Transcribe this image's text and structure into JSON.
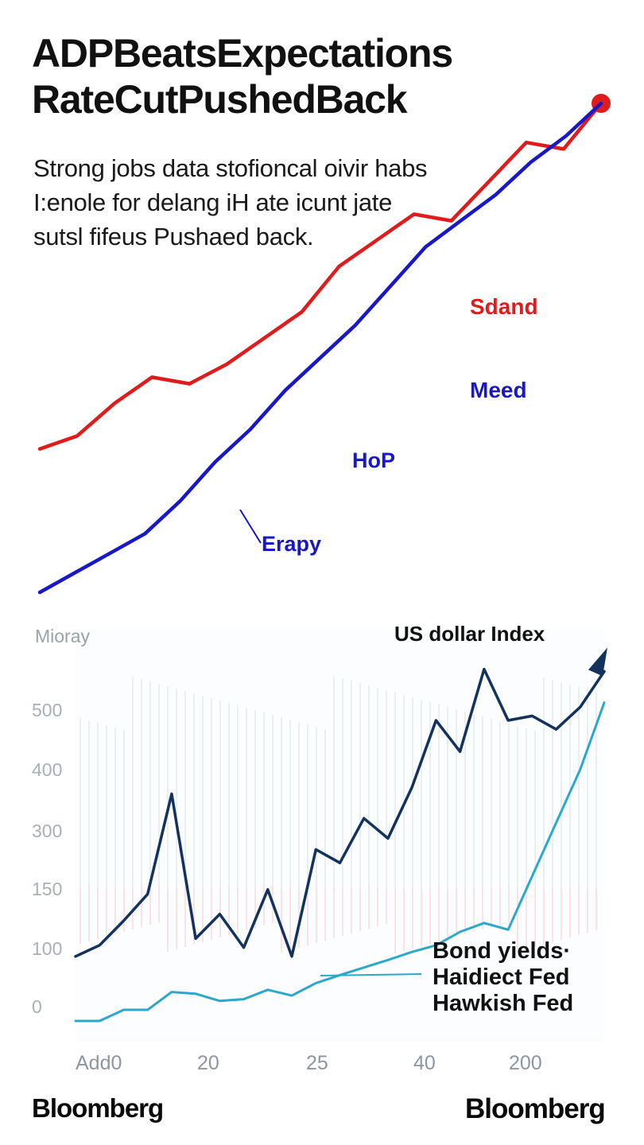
{
  "headline": {
    "line1": "ADPBeatsExpectations",
    "line2": "RateCutPushedBack"
  },
  "subhead": {
    "line1": "Strong jobs data stofioncal oivir habs",
    "line2": "I:enole for delang iH ate icunt jate",
    "line3": "sutsl fifeus Pushaed back."
  },
  "colors": {
    "red": "#e01b1b",
    "blue": "#1818c8",
    "navy": "#13325e",
    "cyan": "#2aa9cc",
    "grid": "#dfe6ee",
    "faint_red": "#f7d2d2"
  },
  "chart_data": [
    {
      "type": "line",
      "title": "",
      "series": [
        {
          "name": "Sdand",
          "color": "#e01b1b",
          "values": [
            2,
            4,
            9,
            13,
            12,
            15,
            19,
            23,
            30,
            34,
            38,
            37,
            43,
            49,
            48,
            55
          ],
          "end_marker": true
        },
        {
          "name": "Meed",
          "color": "#1818c8",
          "values": [
            -20,
            -17,
            -14,
            -11,
            -6,
            0,
            5,
            11,
            16,
            21,
            27,
            33,
            37,
            41,
            46,
            50,
            55
          ]
        }
      ],
      "annotations": [
        "HoP",
        "Erapy"
      ]
    },
    {
      "type": "line",
      "ylabel": "Mioray",
      "ytick_labels": [
        "500",
        "400",
        "300",
        "150",
        "100",
        "0"
      ],
      "xtick_labels": [
        "Add0",
        "20",
        "25",
        "40",
        "200"
      ],
      "series": [
        {
          "name": "US dollar Index",
          "color": "#13325e",
          "values": [
            120,
            145,
            200,
            260,
            485,
            160,
            215,
            140,
            270,
            120,
            360,
            330,
            430,
            385,
            500,
            650,
            580,
            765,
            650,
            660,
            630,
            680,
            760
          ]
        },
        {
          "name": "Bond yields· Haidiect Fed Hawkish Fed",
          "label_lines": [
            "Bond yields·",
            "Haidiect Fed",
            "Hawkish Fed"
          ],
          "color": "#2aa9cc",
          "values": [
            -25,
            -25,
            0,
            0,
            40,
            36,
            20,
            24,
            45,
            32,
            60,
            78,
            95,
            112,
            130,
            145,
            175,
            195,
            180,
            300,
            420,
            540,
            690
          ]
        }
      ]
    }
  ],
  "brand": {
    "left": "Bloomberg",
    "right": "Bloomberg"
  }
}
